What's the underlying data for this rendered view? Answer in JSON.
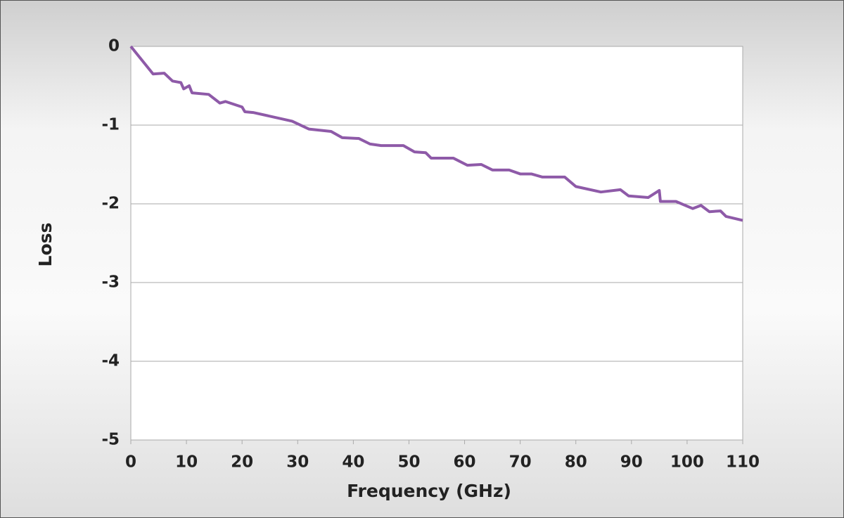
{
  "chart_data": {
    "type": "line",
    "x_label": "Frequency (GHz)",
    "y_label": "Loss",
    "xlim": [
      0,
      110
    ],
    "xticks": [
      0,
      10,
      20,
      30,
      40,
      50,
      60,
      70,
      80,
      90,
      100,
      110
    ],
    "ylim": [
      -5,
      0
    ],
    "yticks": [
      0,
      -1,
      -2,
      -3,
      -4,
      -5
    ],
    "grid": true,
    "series": [
      {
        "color": "#8e5aa8",
        "x": [
          0,
          4,
          6,
          7.5,
          9,
          9.5,
          10.5,
          11,
          14,
          16,
          17,
          20,
          20.5,
          22,
          29,
          32,
          36,
          38,
          41,
          43,
          45,
          49,
          51,
          53,
          54,
          58,
          60.5,
          63,
          65,
          68,
          70,
          72,
          74,
          78,
          80,
          84.5,
          88,
          89.5,
          93,
          95,
          95.2,
          98,
          101,
          102.5,
          104,
          106,
          107,
          110
        ],
        "values": [
          0,
          -0.35,
          -0.34,
          -0.44,
          -0.46,
          -0.54,
          -0.5,
          -0.59,
          -0.61,
          -0.72,
          -0.7,
          -0.77,
          -0.83,
          -0.84,
          -0.95,
          -1.05,
          -1.08,
          -1.16,
          -1.17,
          -1.24,
          -1.26,
          -1.26,
          -1.34,
          -1.35,
          -1.42,
          -1.42,
          -1.51,
          -1.5,
          -1.57,
          -1.57,
          -1.62,
          -1.62,
          -1.66,
          -1.66,
          -1.78,
          -1.85,
          -1.82,
          -1.9,
          -1.92,
          -1.83,
          -1.97,
          -1.97,
          -2.06,
          -2.02,
          -2.1,
          -2.09,
          -2.16,
          -2.21
        ]
      }
    ]
  }
}
